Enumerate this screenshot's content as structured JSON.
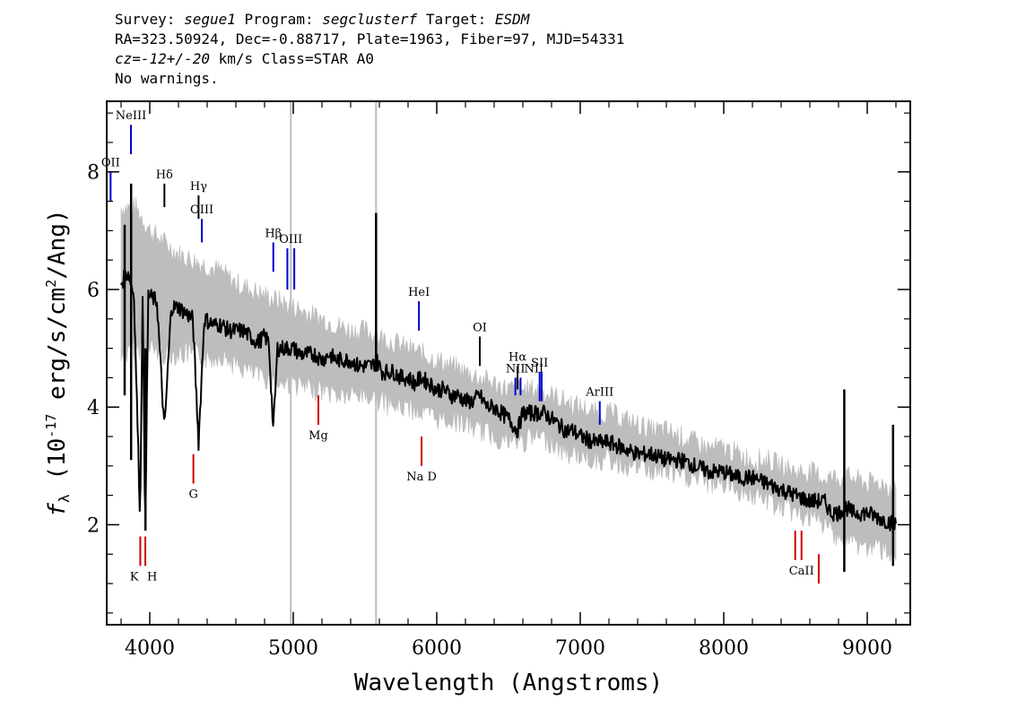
{
  "header": {
    "survey_label": "Survey:",
    "survey": "segue1",
    "program_label": "Program:",
    "program": "segclusterf",
    "target_label": "Target:",
    "target": "ESDM",
    "coords": "RA=323.50924, Dec=-0.88717, Plate=1963, Fiber=97, MJD=54331",
    "cz_value": "cz=-12+/-20",
    "cz_units": "km/s Class=STAR A0",
    "warnings": "No warnings."
  },
  "chart_data": {
    "type": "line",
    "title": "",
    "xlabel": "Wavelength (Angstroms)",
    "ylabel_main": "f",
    "ylabel_sub": "λ",
    "ylabel_rest": " (10",
    "ylabel_exp": "-17",
    "ylabel_units": " erg/s/cm",
    "ylabel_exp2": "2",
    "ylabel_end": "/Ang)",
    "xlim": [
      3700,
      9300
    ],
    "ylim": [
      0.3,
      9.2
    ],
    "xticks": [
      4000,
      5000,
      6000,
      7000,
      8000,
      9000
    ],
    "xtick_labels": [
      "4000",
      "5000",
      "6000",
      "7000",
      "8000",
      "9000"
    ],
    "yticks": [
      2,
      4,
      6,
      8
    ],
    "ytick_labels": [
      "2",
      "4",
      "6",
      "8"
    ],
    "grid": false,
    "vertical_marker_lines": [
      4983,
      5577
    ],
    "series": [
      {
        "role": "error-band",
        "color": "#bdbdbd",
        "x": [
          3800,
          3900,
          4000,
          4100,
          4200,
          4300,
          4400,
          4500,
          4600,
          4700,
          4800,
          4900,
          5000,
          5100,
          5200,
          5300,
          5400,
          5500,
          5600,
          5700,
          5800,
          5900,
          6000,
          6100,
          6200,
          6300,
          6400,
          6500,
          6600,
          6700,
          6800,
          6900,
          7000,
          7100,
          7200,
          7300,
          7400,
          7500,
          7600,
          7700,
          7800,
          7900,
          8000,
          8100,
          8200,
          8300,
          8400,
          8500,
          8600,
          8700,
          8800,
          8900,
          9000,
          9100,
          9200
        ],
        "low": [
          4.8,
          5.0,
          5.0,
          4.9,
          4.9,
          4.9,
          4.8,
          4.9,
          4.7,
          4.6,
          4.5,
          4.4,
          4.4,
          4.3,
          4.3,
          4.2,
          4.2,
          4.2,
          4.1,
          4.0,
          4.0,
          3.9,
          3.8,
          3.8,
          3.7,
          3.6,
          3.5,
          3.4,
          3.4,
          3.5,
          3.4,
          3.2,
          3.2,
          3.1,
          3.1,
          3.0,
          3.0,
          2.9,
          2.9,
          2.8,
          2.8,
          2.7,
          2.7,
          2.6,
          2.5,
          2.4,
          2.3,
          2.2,
          2.1,
          2.0,
          1.8,
          1.7,
          1.6,
          1.6,
          1.5
        ],
        "high": [
          7.4,
          7.4,
          7.0,
          6.8,
          6.6,
          6.5,
          6.4,
          6.3,
          6.1,
          6.0,
          5.9,
          5.8,
          5.7,
          5.6,
          5.5,
          5.4,
          5.3,
          5.3,
          5.2,
          5.1,
          5.0,
          4.9,
          4.8,
          4.7,
          4.6,
          4.5,
          4.4,
          4.3,
          4.3,
          4.3,
          4.2,
          4.1,
          4.0,
          3.9,
          3.9,
          3.8,
          3.7,
          3.6,
          3.6,
          3.5,
          3.4,
          3.3,
          3.3,
          3.2,
          3.1,
          3.1,
          3.0,
          2.9,
          2.9,
          2.8,
          2.8,
          2.8,
          2.7,
          2.7,
          2.6
        ]
      },
      {
        "role": "flux",
        "color": "#000000",
        "x": [
          3800,
          3850,
          3890,
          3933,
          3950,
          3968,
          3990,
          4050,
          4102,
          4150,
          4200,
          4250,
          4300,
          4340,
          4380,
          4450,
          4500,
          4550,
          4600,
          4650,
          4700,
          4750,
          4800,
          4830,
          4861,
          4890,
          4950,
          5000,
          5050,
          5100,
          5150,
          5200,
          5250,
          5300,
          5350,
          5400,
          5450,
          5500,
          5550,
          5580,
          5620,
          5650,
          5700,
          5750,
          5800,
          5850,
          5890,
          5950,
          6000,
          6050,
          6100,
          6150,
          6200,
          6250,
          6300,
          6350,
          6400,
          6450,
          6500,
          6563,
          6600,
          6650,
          6700,
          6750,
          6800,
          6850,
          6900,
          6950,
          7000,
          7100,
          7200,
          7300,
          7400,
          7500,
          7600,
          7700,
          7800,
          7900,
          8000,
          8100,
          8200,
          8300,
          8400,
          8500,
          8600,
          8700,
          8750,
          8800,
          8850,
          8900,
          9000,
          9100,
          9200
        ],
        "y": [
          6.1,
          6.3,
          5.9,
          2.1,
          6.0,
          1.9,
          5.9,
          5.8,
          3.6,
          5.7,
          5.7,
          5.6,
          5.5,
          3.4,
          5.5,
          5.4,
          5.4,
          5.3,
          5.3,
          5.3,
          5.2,
          5.1,
          5.2,
          5.1,
          3.6,
          5.0,
          5.0,
          5.0,
          4.9,
          4.9,
          4.9,
          4.8,
          4.9,
          4.8,
          4.8,
          4.8,
          4.7,
          4.7,
          4.7,
          4.8,
          4.6,
          4.6,
          4.6,
          4.5,
          4.5,
          4.4,
          4.5,
          4.4,
          4.3,
          4.3,
          4.2,
          4.2,
          4.1,
          4.1,
          4.2,
          4.0,
          4.0,
          3.9,
          3.8,
          3.6,
          3.9,
          3.9,
          3.9,
          3.9,
          3.8,
          3.7,
          3.6,
          3.6,
          3.5,
          3.4,
          3.4,
          3.3,
          3.2,
          3.2,
          3.1,
          3.1,
          3.0,
          2.9,
          2.9,
          2.8,
          2.8,
          2.7,
          2.6,
          2.5,
          2.4,
          2.4,
          2.2,
          2.2,
          2.3,
          2.2,
          2.2,
          2.1,
          2.0
        ]
      }
    ],
    "spikes": [
      {
        "x": 3825,
        "lo": 4.2,
        "hi": 7.1
      },
      {
        "x": 3870,
        "lo": 3.1,
        "hi": 7.8
      },
      {
        "x": 3970,
        "lo": 1.9,
        "hi": 5.0
      },
      {
        "x": 5577,
        "lo": 4.6,
        "hi": 7.3
      },
      {
        "x": 8840,
        "lo": 1.2,
        "hi": 4.3
      },
      {
        "x": 9180,
        "lo": 1.3,
        "hi": 3.7
      }
    ],
    "annotations": [
      {
        "label": "OII",
        "x": 3727,
        "y0": 7.5,
        "y1": 8.0,
        "color": "#0000cc",
        "pos": "above"
      },
      {
        "label": "NeIII",
        "x": 3869,
        "y0": 8.3,
        "y1": 8.8,
        "color": "#0000cc",
        "pos": "above"
      },
      {
        "label": "Hδ",
        "x": 4102,
        "y0": 7.4,
        "y1": 7.8,
        "color": "#000000",
        "pos": "above"
      },
      {
        "label": "Hγ",
        "x": 4340,
        "y0": 7.2,
        "y1": 7.6,
        "color": "#000000",
        "pos": "above"
      },
      {
        "label": "OIII",
        "x": 4363,
        "y0": 6.8,
        "y1": 7.2,
        "color": "#0000cc",
        "pos": "above"
      },
      {
        "label": "Hβ",
        "x": 4861,
        "y0": 6.3,
        "y1": 6.8,
        "color": "#0000cc",
        "pos": "above"
      },
      {
        "label": "OIII",
        "x": 4959,
        "y0": 6.0,
        "y1": 6.7,
        "color": "#0000cc",
        "pos": "above-group"
      },
      {
        "label": "",
        "x": 5007,
        "y0": 6.0,
        "y1": 6.7,
        "color": "#0000cc",
        "pos": "none"
      },
      {
        "label": "HeI",
        "x": 5876,
        "y0": 5.3,
        "y1": 5.8,
        "color": "#0000cc",
        "pos": "above"
      },
      {
        "label": "OI",
        "x": 6300,
        "y0": 4.7,
        "y1": 5.2,
        "color": "#000000",
        "pos": "above"
      },
      {
        "label": "NII",
        "x": 6548,
        "y0": 4.2,
        "y1": 4.5,
        "color": "#0000cc",
        "pos": "above"
      },
      {
        "label": "Hα",
        "x": 6563,
        "y0": 4.3,
        "y1": 4.7,
        "color": "#000000",
        "pos": "above"
      },
      {
        "label": "NII",
        "x": 6584,
        "y0": 4.2,
        "y1": 4.5,
        "color": "#0000cc",
        "pos": "above-right"
      },
      {
        "label": "SII",
        "x": 6717,
        "y0": 4.1,
        "y1": 4.6,
        "color": "#0000cc",
        "pos": "above"
      },
      {
        "label": "",
        "x": 6731,
        "y0": 4.1,
        "y1": 4.6,
        "color": "#0000cc",
        "pos": "none"
      },
      {
        "label": "ArIII",
        "x": 7136,
        "y0": 3.7,
        "y1": 4.1,
        "color": "#0000cc",
        "pos": "above"
      },
      {
        "label": "G",
        "x": 4304,
        "y0": 2.7,
        "y1": 3.2,
        "color": "#cc0000",
        "pos": "below"
      },
      {
        "label": "Mg",
        "x": 5175,
        "y0": 3.7,
        "y1": 4.2,
        "color": "#cc0000",
        "pos": "below"
      },
      {
        "label": "Na D",
        "x": 5894,
        "y0": 3.0,
        "y1": 3.5,
        "color": "#cc0000",
        "pos": "below"
      },
      {
        "label": "K",
        "x": 3934,
        "y0": 1.3,
        "y1": 1.8,
        "color": "#cc0000",
        "pos": "below-left"
      },
      {
        "label": "H",
        "x": 3969,
        "y0": 1.3,
        "y1": 1.8,
        "color": "#cc0000",
        "pos": "below-right"
      },
      {
        "label": "",
        "x": 8498,
        "y0": 1.4,
        "y1": 1.9,
        "color": "#cc0000",
        "pos": "none"
      },
      {
        "label": "CaII",
        "x": 8542,
        "y0": 1.4,
        "y1": 1.9,
        "color": "#cc0000",
        "pos": "below"
      },
      {
        "label": "",
        "x": 8662,
        "y0": 1.0,
        "y1": 1.5,
        "color": "#cc0000",
        "pos": "none"
      }
    ]
  }
}
